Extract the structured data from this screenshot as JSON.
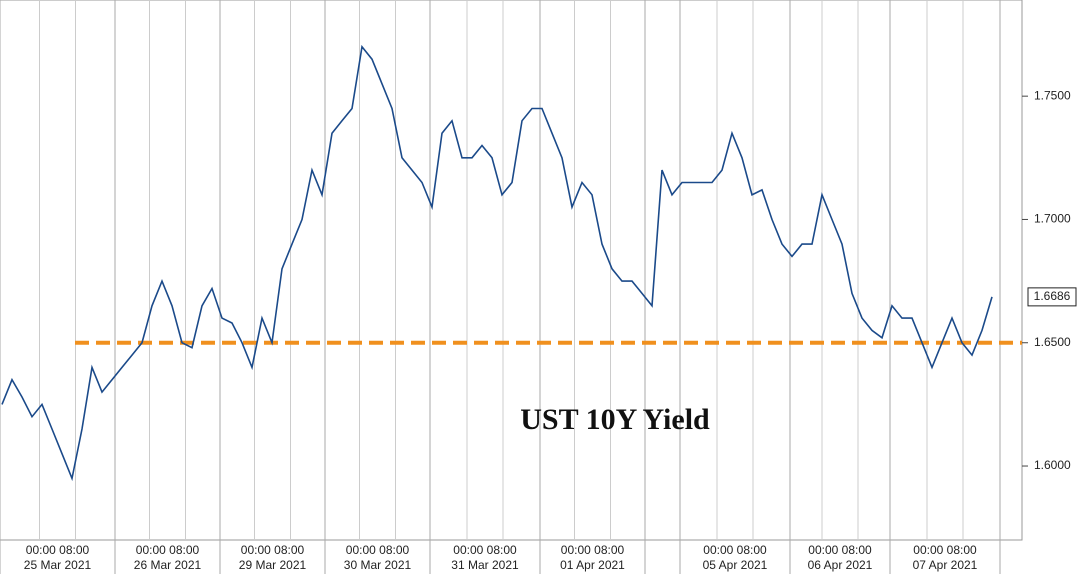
{
  "chart_data": {
    "type": "line",
    "annotation": "UST 10Y Yield",
    "series": [
      {
        "name": "UST 10Y Yield",
        "color": "#1b4a8a",
        "values": [
          1.625,
          1.635,
          1.628,
          1.62,
          1.625,
          1.615,
          1.605,
          1.595,
          1.615,
          1.64,
          1.63,
          1.635,
          1.64,
          1.645,
          1.65,
          1.665,
          1.675,
          1.665,
          1.65,
          1.648,
          1.665,
          1.672,
          1.66,
          1.658,
          1.65,
          1.64,
          1.66,
          1.65,
          1.68,
          1.69,
          1.7,
          1.72,
          1.71,
          1.735,
          1.74,
          1.745,
          1.77,
          1.765,
          1.755,
          1.745,
          1.725,
          1.72,
          1.715,
          1.705,
          1.735,
          1.74,
          1.725,
          1.725,
          1.73,
          1.725,
          1.71,
          1.715,
          1.74,
          1.745,
          1.745,
          1.735,
          1.725,
          1.705,
          1.715,
          1.71,
          1.69,
          1.68,
          1.675,
          1.675,
          1.67,
          1.665,
          1.72,
          1.71,
          1.715,
          1.715,
          1.715,
          1.715,
          1.72,
          1.735,
          1.725,
          1.71,
          1.712,
          1.7,
          1.69,
          1.685,
          1.69,
          1.69,
          1.71,
          1.7,
          1.69,
          1.67,
          1.66,
          1.655,
          1.652,
          1.665,
          1.66,
          1.66,
          1.65,
          1.64,
          1.65,
          1.66,
          1.65,
          1.645,
          1.655,
          1.6686
        ]
      }
    ],
    "ylim": [
      1.57,
      1.789
    ],
    "yticks": [
      {
        "value": 1.6,
        "label": "1.6000"
      },
      {
        "value": 1.65,
        "label": "1.6500"
      },
      {
        "value": 1.7,
        "label": "1.7000"
      },
      {
        "value": 1.75,
        "label": "1.7500"
      }
    ],
    "reference_line": {
      "value": 1.65,
      "color": "#f0901e"
    },
    "x_labels": [
      {
        "time": "00:00 08:00",
        "date": "25 Mar 2021"
      },
      {
        "time": "00:00 08:00",
        "date": "26 Mar 2021"
      },
      {
        "time": "00:00 08:00",
        "date": "29 Mar 2021"
      },
      {
        "time": "00:00 08:00",
        "date": "30 Mar 2021"
      },
      {
        "time": "00:00 08:00",
        "date": "31 Mar 2021"
      },
      {
        "time": "00:00 08:00",
        "date": "01 Apr 2021"
      },
      {
        "time": "00:00 08:00",
        "date": "05 Apr 2021"
      },
      {
        "time": "00:00 08:00",
        "date": "06 Apr 2021"
      },
      {
        "time": "00:00 08:00",
        "date": "07 Apr 2021"
      }
    ]
  }
}
